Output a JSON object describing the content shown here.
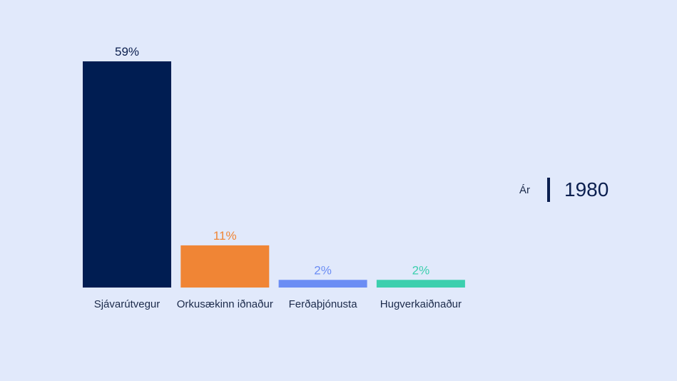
{
  "chart_data": {
    "type": "bar",
    "categories": [
      "Sjávarútvegur",
      "Orkusækinn iðnaður",
      "Ferðaþjónusta",
      "Hugverkaiðnaður"
    ],
    "values": [
      59,
      11,
      2,
      2
    ],
    "value_labels": [
      "59%",
      "11%",
      "2%",
      "2%"
    ],
    "colors": [
      "#001d52",
      "#f08535",
      "#6b8df4",
      "#3ccfae"
    ],
    "ylim": [
      0,
      59
    ],
    "grid": false,
    "legend": "none"
  },
  "year_selector": {
    "label": "Ár",
    "value": "1980",
    "accent_color": "#0b1f4f"
  }
}
